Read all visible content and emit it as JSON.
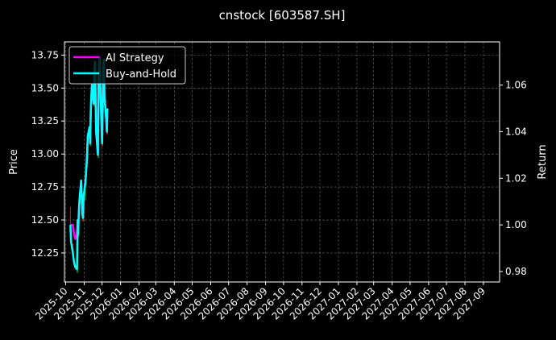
{
  "chart_data": {
    "type": "line",
    "title": "cnstock [603587.SH]",
    "ylabel_left": "Price",
    "ylabel_right": "Return",
    "ylim_left": [
      12.03,
      13.85
    ],
    "ylim_right": [
      0.9755,
      1.0785
    ],
    "xlim": [
      "2025-09-29",
      "2027-09-28"
    ],
    "grid": true,
    "legend_position": "top-left",
    "yticks_left": [
      "12.25",
      "12.50",
      "12.75",
      "13.00",
      "13.25",
      "13.50",
      "13.75"
    ],
    "yticks_right": [
      "0.98",
      "1.00",
      "1.02",
      "1.04",
      "1.06"
    ],
    "xticks": [
      "2025-10",
      "2025-11",
      "2025-12",
      "2026-01",
      "2026-02",
      "2026-03",
      "2026-04",
      "2026-05",
      "2026-06",
      "2026-07",
      "2026-08",
      "2026-09",
      "2026-10",
      "2026-11",
      "2026-12",
      "2027-01",
      "2027-02",
      "2027-03",
      "2027-04",
      "2027-05",
      "2027-06",
      "2027-07",
      "2027-08",
      "2027-09"
    ],
    "dates": [
      "2025-10-09",
      "2025-10-10",
      "2025-10-13",
      "2025-10-14",
      "2025-10-15",
      "2025-10-16",
      "2025-10-17",
      "2025-10-20",
      "2025-10-21",
      "2025-10-22",
      "2025-10-23",
      "2025-10-24",
      "2025-10-27",
      "2025-10-28",
      "2025-10-29",
      "2025-10-30",
      "2025-10-31",
      "2025-11-03",
      "2025-11-04",
      "2025-11-05",
      "2025-11-06",
      "2025-11-07",
      "2025-11-10",
      "2025-11-11",
      "2025-11-12",
      "2025-11-13",
      "2025-11-14",
      "2025-11-17",
      "2025-11-18",
      "2025-11-19",
      "2025-11-20",
      "2025-11-21",
      "2025-11-24",
      "2025-11-25",
      "2025-11-26",
      "2025-11-27",
      "2025-11-28",
      "2025-12-01",
      "2025-12-02",
      "2025-12-03",
      "2025-12-04",
      "2025-12-05",
      "2025-12-08",
      "2025-12-09",
      "2025-12-10"
    ],
    "price": {
      "open": [
        12.6,
        12.44,
        12.32,
        12.23,
        12.19,
        12.16,
        12.14,
        12.12,
        12.1,
        12.48,
        12.37,
        12.53,
        12.62,
        12.78,
        12.65,
        12.53,
        12.49,
        12.65,
        12.76,
        12.83,
        12.9,
        12.97,
        13.11,
        13.18,
        13.06,
        13.29,
        13.41,
        13.5,
        13.36,
        13.59,
        13.68,
        13.47,
        13.15,
        12.97,
        13.54,
        13.64,
        13.71,
        13.5,
        13.06,
        13.33,
        13.61,
        13.7,
        13.41,
        13.24,
        13.15
      ],
      "close": [
        12.44,
        12.32,
        12.23,
        12.19,
        12.16,
        12.14,
        12.12,
        12.1,
        12.48,
        12.37,
        12.53,
        12.62,
        12.78,
        12.65,
        12.53,
        12.49,
        12.65,
        12.76,
        12.83,
        12.9,
        12.97,
        13.11,
        13.18,
        13.06,
        13.29,
        13.41,
        13.5,
        13.36,
        13.59,
        13.68,
        13.47,
        13.15,
        12.97,
        13.54,
        13.64,
        13.71,
        13.5,
        13.06,
        13.33,
        13.61,
        13.7,
        13.41,
        13.24,
        13.15,
        13.33
      ]
    },
    "series": [
      {
        "name": "AI Strategy",
        "color": "#ff00ff",
        "values": [
          1.0,
          1.0,
          1.0,
          0.998,
          0.996,
          0.995,
          0.994,
          0.996,
          1.002,
          0.998,
          1.005,
          1.01,
          1.019,
          1.012,
          1.005,
          1.003,
          1.012,
          1.018,
          1.022,
          1.026,
          1.03,
          1.038,
          1.042,
          1.035,
          1.048,
          1.055,
          1.06,
          1.052,
          1.065,
          1.07,
          1.058,
          1.04,
          1.03,
          1.062,
          1.068,
          1.072,
          1.06,
          1.035,
          1.05,
          1.066,
          1.071,
          1.055,
          1.045,
          1.04,
          1.05
        ]
      },
      {
        "name": "Buy-and-Hold",
        "color": "#00ffff",
        "values": [
          1.0,
          0.993,
          0.988,
          0.986,
          0.984,
          0.983,
          0.982,
          0.981,
          1.002,
          0.996,
          1.005,
          1.01,
          1.019,
          1.012,
          1.005,
          1.003,
          1.012,
          1.018,
          1.022,
          1.026,
          1.03,
          1.038,
          1.042,
          1.035,
          1.048,
          1.055,
          1.06,
          1.052,
          1.065,
          1.07,
          1.058,
          1.04,
          1.03,
          1.062,
          1.068,
          1.072,
          1.06,
          1.035,
          1.05,
          1.066,
          1.071,
          1.055,
          1.045,
          1.04,
          1.05
        ]
      }
    ],
    "candle_colors": {
      "up": "#00a000",
      "down": "#e00000"
    }
  }
}
